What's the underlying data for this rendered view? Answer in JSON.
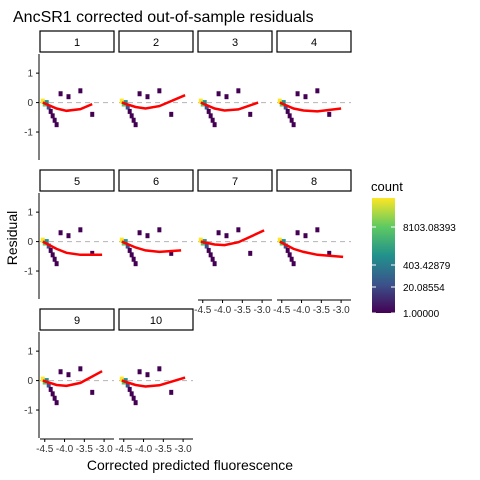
{
  "chart_data": {
    "type": "heatmap",
    "title": "AncSR1 corrected out-of-sample residuals",
    "xlabel": "Corrected predicted fluorescence",
    "ylabel": "Residual",
    "x_ticks": [
      -4.5,
      -4.0,
      -3.5,
      -3.0
    ],
    "x_tick_labels": [
      "-4.5",
      "-4.0",
      "-3.5",
      "-3.0"
    ],
    "y_ticks": [
      1,
      0,
      -1
    ],
    "y_tick_labels": [
      "1",
      "0",
      "-1"
    ],
    "xlim": [
      -4.62,
      -2.75
    ],
    "ylim": [
      -1.95,
      1.65
    ],
    "reference_line": {
      "y": 0,
      "style": "dashed",
      "color": "#bdbdbd"
    },
    "fit_color": "#ff0000",
    "legend": {
      "title": "count",
      "position": "right",
      "labels": [
        "8103.08393",
        "403.42879",
        "20.08554",
        "1.00000"
      ],
      "colors": [
        "#440154",
        "#3b528b",
        "#21918c",
        "#5ec962",
        "#fde725"
      ]
    },
    "facets": [
      {
        "label": "1",
        "fit": [
          [
            -4.55,
            0.0
          ],
          [
            -4.2,
            -0.2
          ],
          [
            -3.95,
            -0.28
          ],
          [
            -3.6,
            -0.22
          ],
          [
            -3.3,
            -0.05
          ]
        ]
      },
      {
        "label": "2",
        "fit": [
          [
            -4.55,
            0.0
          ],
          [
            -4.2,
            -0.15
          ],
          [
            -3.95,
            -0.2
          ],
          [
            -3.6,
            -0.12
          ],
          [
            -2.95,
            0.25
          ]
        ]
      },
      {
        "label": "3",
        "fit": [
          [
            -4.55,
            0.0
          ],
          [
            -4.2,
            -0.2
          ],
          [
            -3.95,
            -0.27
          ],
          [
            -3.6,
            -0.23
          ],
          [
            -3.1,
            0.0
          ]
        ]
      },
      {
        "label": "4",
        "fit": [
          [
            -4.55,
            0.0
          ],
          [
            -4.2,
            -0.2
          ],
          [
            -3.95,
            -0.27
          ],
          [
            -3.6,
            -0.3
          ],
          [
            -3.0,
            -0.2
          ]
        ]
      },
      {
        "label": "5",
        "fit": [
          [
            -4.55,
            0.0
          ],
          [
            -4.2,
            -0.25
          ],
          [
            -3.95,
            -0.38
          ],
          [
            -3.6,
            -0.45
          ],
          [
            -3.05,
            -0.45
          ]
        ]
      },
      {
        "label": "6",
        "fit": [
          [
            -4.55,
            0.0
          ],
          [
            -4.2,
            -0.2
          ],
          [
            -3.95,
            -0.3
          ],
          [
            -3.6,
            -0.35
          ],
          [
            -3.05,
            -0.3
          ]
        ]
      },
      {
        "label": "7",
        "fit": [
          [
            -4.55,
            0.0
          ],
          [
            -4.2,
            -0.1
          ],
          [
            -3.95,
            -0.12
          ],
          [
            -3.6,
            -0.02
          ],
          [
            -2.95,
            0.38
          ]
        ]
      },
      {
        "label": "8",
        "fit": [
          [
            -4.55,
            0.0
          ],
          [
            -4.2,
            -0.25
          ],
          [
            -3.95,
            -0.35
          ],
          [
            -3.6,
            -0.45
          ],
          [
            -2.95,
            -0.52
          ]
        ]
      },
      {
        "label": "9",
        "fit": [
          [
            -4.55,
            0.0
          ],
          [
            -4.2,
            -0.15
          ],
          [
            -3.95,
            -0.18
          ],
          [
            -3.6,
            -0.08
          ],
          [
            -3.05,
            0.32
          ]
        ]
      },
      {
        "label": "10",
        "fit": [
          [
            -4.55,
            0.0
          ],
          [
            -4.2,
            -0.15
          ],
          [
            -3.95,
            -0.2
          ],
          [
            -3.6,
            -0.16
          ],
          [
            -2.95,
            0.1
          ]
        ]
      }
    ],
    "cell_samples": [
      {
        "x": -4.55,
        "y": 0.05,
        "level": 4
      },
      {
        "x": -4.5,
        "y": -0.05,
        "level": 3
      },
      {
        "x": -4.45,
        "y": 0.0,
        "level": 2
      },
      {
        "x": -4.4,
        "y": -0.15,
        "level": 1
      },
      {
        "x": -4.35,
        "y": -0.3,
        "level": 0
      },
      {
        "x": -4.3,
        "y": -0.45,
        "level": 0
      },
      {
        "x": -4.25,
        "y": -0.6,
        "level": 0
      },
      {
        "x": -4.2,
        "y": -0.75,
        "level": 0
      },
      {
        "x": -4.1,
        "y": 0.3,
        "level": 0
      },
      {
        "x": -3.9,
        "y": 0.2,
        "level": 0
      },
      {
        "x": -3.6,
        "y": 0.4,
        "level": 0
      },
      {
        "x": -3.3,
        "y": -0.4,
        "level": 0
      }
    ]
  }
}
